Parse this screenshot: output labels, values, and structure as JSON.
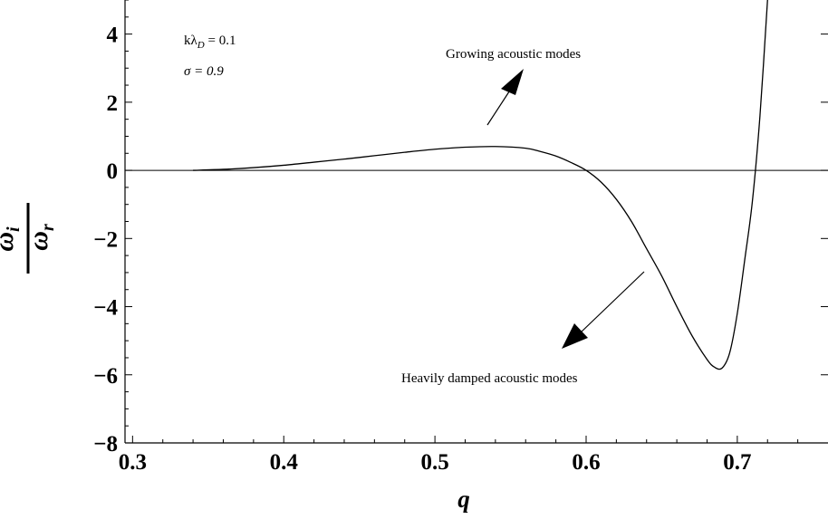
{
  "chart_data": {
    "type": "line",
    "xlabel": "q",
    "ylabel": {
      "numerator": "ω",
      "numerator_sub": "i",
      "denominator": "ω",
      "denominator_sub": "r"
    },
    "xlim": [
      0.295,
      0.76
    ],
    "ylim": [
      -8,
      5
    ],
    "x_ticks": [
      {
        "value": 0.3,
        "label": "0.3"
      },
      {
        "value": 0.4,
        "label": "0.4"
      },
      {
        "value": 0.5,
        "label": "0.5"
      },
      {
        "value": 0.6,
        "label": "0.6"
      },
      {
        "value": 0.7,
        "label": "0.7"
      }
    ],
    "y_ticks": [
      {
        "value": 4,
        "label": "4"
      },
      {
        "value": 2,
        "label": "2"
      },
      {
        "value": 0,
        "label": "0"
      },
      {
        "value": -2,
        "label": "−2"
      },
      {
        "value": -4,
        "label": "−4"
      },
      {
        "value": -6,
        "label": "−6"
      },
      {
        "value": -8,
        "label": "−8"
      }
    ],
    "grid": false,
    "reference_line_y": 0,
    "series": [
      {
        "x": [
          0.34,
          0.36,
          0.38,
          0.4,
          0.42,
          0.44,
          0.46,
          0.48,
          0.5,
          0.52,
          0.54,
          0.56,
          0.57,
          0.58,
          0.59,
          0.6,
          0.61,
          0.62,
          0.63,
          0.64,
          0.65,
          0.66,
          0.67,
          0.68,
          0.685,
          0.69,
          0.695,
          0.7,
          0.705,
          0.71,
          0.715,
          0.72
        ],
        "y": [
          0.0,
          0.03,
          0.08,
          0.15,
          0.24,
          0.33,
          0.43,
          0.53,
          0.62,
          0.68,
          0.7,
          0.65,
          0.55,
          0.42,
          0.23,
          0.0,
          -0.35,
          -0.85,
          -1.5,
          -2.3,
          -3.1,
          -4.0,
          -4.85,
          -5.55,
          -5.78,
          -5.8,
          -5.35,
          -4.2,
          -2.6,
          -0.9,
          1.6,
          5.0
        ]
      }
    ],
    "annotations": [
      {
        "id": "klambda",
        "text": "kλ",
        "sub": "D",
        "rest": " = 0.1"
      },
      {
        "id": "sigma",
        "text": "σ = 0.9"
      },
      {
        "id": "growing",
        "text": "Growing acoustic modes"
      },
      {
        "id": "damped",
        "text": "Heavily  damped acoustic modes"
      }
    ]
  }
}
